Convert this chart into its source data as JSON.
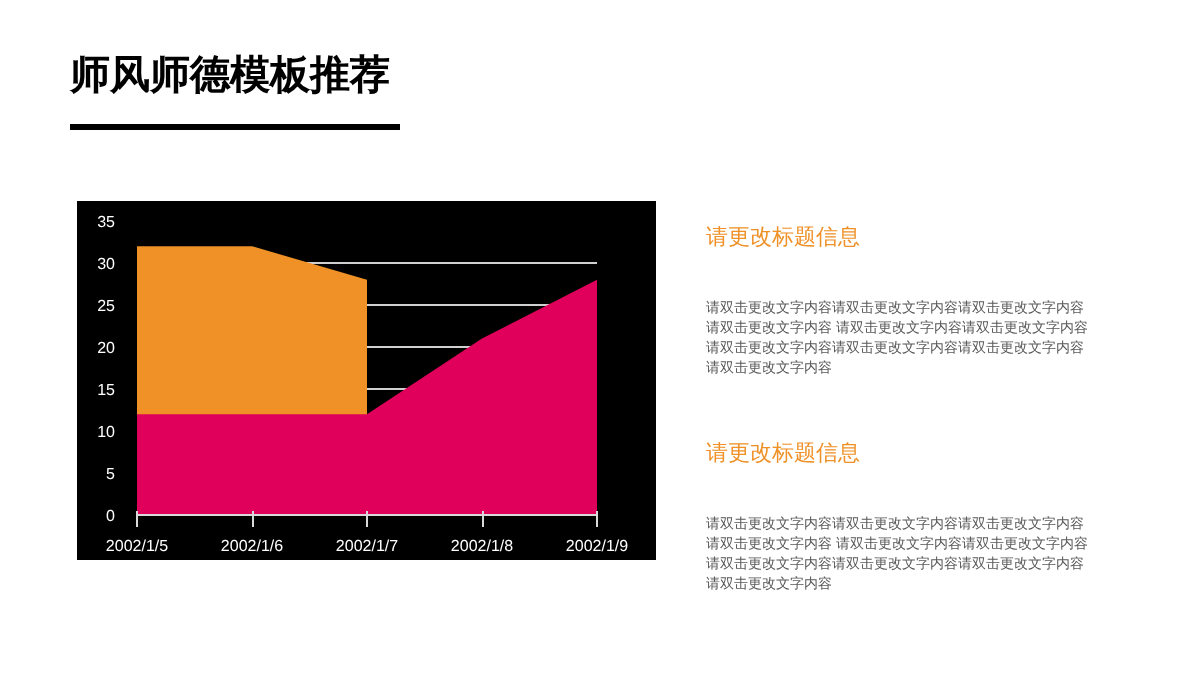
{
  "chart_data": {
    "type": "area",
    "title": "师风师德模板推荐",
    "categories": [
      "2002/1/5",
      "2002/1/6",
      "2002/1/7",
      "2002/1/8",
      "2002/1/9"
    ],
    "series": [
      {
        "color": "#ef9127",
        "values": [
          32,
          32,
          28,
          null,
          null
        ]
      },
      {
        "color": "#e0005b",
        "values": [
          12,
          12,
          12,
          21,
          28
        ]
      }
    ],
    "ylim": [
      0,
      35
    ],
    "yticks": [
      0,
      5,
      10,
      15,
      20,
      25,
      30,
      35
    ],
    "grid": "y",
    "annotations": [
      "请更改标题信息",
      "请双击更改文字内容请双击更改文字内容请双击更改文字内容请双击更改文字内容 请双击更改文字内容请双击更改文字内容请双击更改文字内容请双击更改文字内容请双击更改文字内容请双击更改文字内容",
      "请更改标题信息",
      "请双击更改文字内容请双击更改文字内容请双击更改文字内容请双击更改文字内容 请双击更改文字内容请双击更改文字内容请双击更改文字内容请双击更改文字内容请双击更改文字内容请双击更改文字内容"
    ]
  }
}
